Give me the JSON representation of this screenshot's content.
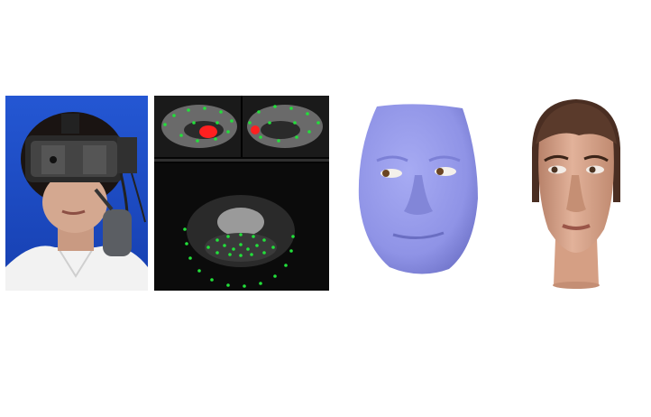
{
  "figure": {
    "panels": [
      {
        "id": "photo",
        "depicts": "person-wearing-vr-headset-with-face-camera"
      },
      {
        "id": "ir",
        "depicts": "infrared-eye-and-mouth-camera-views-with-tracked-landmarks"
      },
      {
        "id": "mesh",
        "depicts": "purple-3d-face-mesh-reconstruction"
      },
      {
        "id": "avatar",
        "depicts": "textured-3d-avatar-head"
      }
    ],
    "colors": {
      "photo_background": "#1f4fc4",
      "ir_background": "#050505",
      "landmark_green": "#22e03a",
      "landmark_red": "#ff2020",
      "mesh_purple": "#8f93e6",
      "avatar_skin": "#d9a58a",
      "avatar_hair": "#4a2e22"
    }
  }
}
